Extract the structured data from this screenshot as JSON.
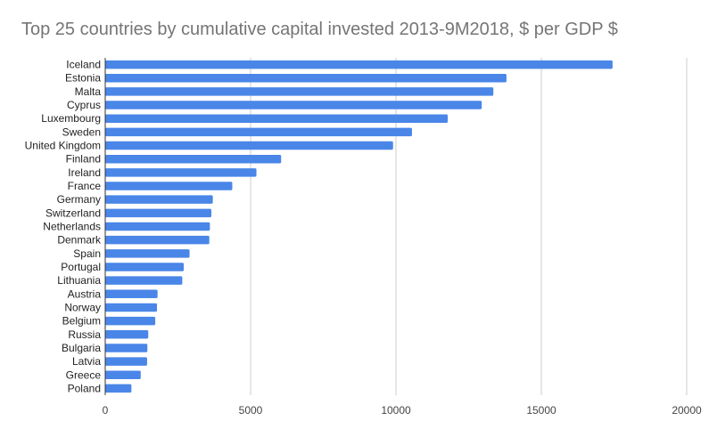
{
  "chart_data": {
    "type": "bar",
    "orientation": "horizontal",
    "title": "Top 25 countries by cumulative capital invested 2013-9M2018, $ per GDP $",
    "xlabel": "",
    "ylabel": "",
    "categories": [
      "Iceland",
      "Estonia",
      "Malta",
      "Cyprus",
      "Luxembourg",
      "Sweden",
      "United Kingdom",
      "Finland",
      "Ireland",
      "France",
      "Germany",
      "Switzerland",
      "Netherlands",
      "Denmark",
      "Spain",
      "Portugal",
      "Lithuania",
      "Austria",
      "Norway",
      "Belgium",
      "Russia",
      "Bulgaria",
      "Latvia",
      "Greece",
      "Poland"
    ],
    "values": [
      17450,
      13800,
      13350,
      12950,
      11780,
      10550,
      9900,
      6050,
      5200,
      4370,
      3700,
      3650,
      3600,
      3580,
      2900,
      2700,
      2650,
      1800,
      1780,
      1720,
      1480,
      1450,
      1440,
      1220,
      900
    ],
    "xlim": [
      0,
      20000
    ],
    "xticks": [
      0,
      5000,
      10000,
      15000,
      20000
    ],
    "grid": true,
    "legend": "none",
    "colors": {
      "bar": "#4a86e8",
      "grid": "#cccccc",
      "axis": "#333333",
      "title": "#757575"
    }
  }
}
